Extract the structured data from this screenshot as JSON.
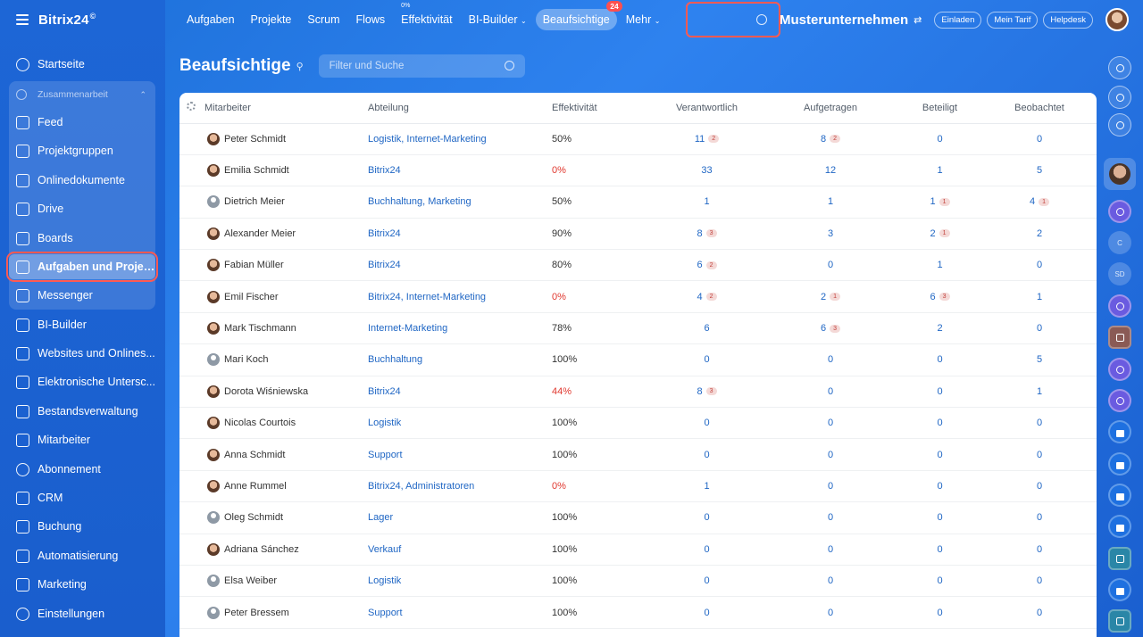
{
  "app": {
    "logo": "Bitrix24",
    "logo_sup": "©"
  },
  "sidebar": {
    "group_label": "Zusammenarbeit",
    "items": [
      {
        "label": "Startseite",
        "icon": "home-icon"
      },
      {
        "label": "Feed",
        "icon": "feed-icon"
      },
      {
        "label": "Projektgruppen",
        "icon": "groups-icon"
      },
      {
        "label": "Onlinedokumente",
        "icon": "document-icon"
      },
      {
        "label": "Drive",
        "icon": "drive-icon"
      },
      {
        "label": "Boards",
        "icon": "boards-icon"
      },
      {
        "label": "Aufgaben und Projek...",
        "icon": "tasks-icon"
      },
      {
        "label": "Messenger",
        "icon": "messenger-icon"
      },
      {
        "label": "BI-Builder",
        "icon": "chart-icon"
      },
      {
        "label": "Websites und Onlines...",
        "icon": "cart-icon"
      },
      {
        "label": "Elektronische Untersc...",
        "icon": "signature-icon"
      },
      {
        "label": "Bestandsverwaltung",
        "icon": "inventory-icon"
      },
      {
        "label": "Mitarbeiter",
        "icon": "employees-icon"
      },
      {
        "label": "Abonnement",
        "icon": "subscription-icon"
      },
      {
        "label": "CRM",
        "icon": "crm-icon"
      },
      {
        "label": "Buchung",
        "icon": "booking-icon"
      },
      {
        "label": "Automatisierung",
        "icon": "automation-icon"
      },
      {
        "label": "Marketing",
        "icon": "marketing-icon"
      },
      {
        "label": "Einstellungen",
        "icon": "settings-icon"
      }
    ]
  },
  "topnav": {
    "tabs": [
      "Aufgaben",
      "Projekte",
      "Scrum",
      "Flows",
      "Effektivität",
      "BI-Builder",
      "Beaufsichtige",
      "Mehr"
    ],
    "eff_mini": "0%",
    "counter": "24",
    "company": "Musterunternehmen",
    "buttons": [
      "Einladen",
      "Mein Tarif",
      "Helpdesk"
    ]
  },
  "page": {
    "title": "Beaufsichtige",
    "filter_placeholder": "Filter und Suche"
  },
  "table": {
    "headers": [
      "Mitarbeiter",
      "Abteilung",
      "Effektivität",
      "Verantwortlich",
      "Aufgetragen",
      "Beteiligt",
      "Beobachtet"
    ],
    "rows": [
      {
        "name": "Peter Schmidt",
        "dept": "Logistik, Internet-Marketing",
        "eff": "50%",
        "red": false,
        "v": "11",
        "vb": "2",
        "a": "8",
        "ab": "2",
        "b": "0",
        "bb": "",
        "o": "0",
        "ob": "",
        "av": "photo"
      },
      {
        "name": "Emilia Schmidt",
        "dept": "Bitrix24",
        "eff": "0%",
        "red": true,
        "v": "33",
        "vb": "",
        "a": "12",
        "ab": "",
        "b": "1",
        "bb": "",
        "o": "5",
        "ob": "",
        "av": "photo"
      },
      {
        "name": "Dietrich Meier",
        "dept": "Buchhaltung, Marketing",
        "eff": "50%",
        "red": false,
        "v": "1",
        "vb": "",
        "a": "1",
        "ab": "",
        "b": "1",
        "bb": "1",
        "o": "4",
        "ob": "1",
        "av": "blank"
      },
      {
        "name": "Alexander Meier",
        "dept": "Bitrix24",
        "eff": "90%",
        "red": false,
        "v": "8",
        "vb": "3",
        "a": "3",
        "ab": "",
        "b": "2",
        "bb": "1",
        "o": "2",
        "ob": "",
        "av": "photo"
      },
      {
        "name": "Fabian Müller",
        "dept": "Bitrix24",
        "eff": "80%",
        "red": false,
        "v": "6",
        "vb": "2",
        "a": "0",
        "ab": "",
        "b": "1",
        "bb": "",
        "o": "0",
        "ob": "",
        "av": "photo"
      },
      {
        "name": "Emil Fischer",
        "dept": "Bitrix24, Internet-Marketing",
        "eff": "0%",
        "red": true,
        "v": "4",
        "vb": "2",
        "a": "2",
        "ab": "1",
        "b": "6",
        "bb": "3",
        "o": "1",
        "ob": "",
        "av": "photo"
      },
      {
        "name": "Mark Tischmann",
        "dept": "Internet-Marketing",
        "eff": "78%",
        "red": false,
        "v": "6",
        "vb": "",
        "a": "6",
        "ab": "3",
        "b": "2",
        "bb": "",
        "o": "0",
        "ob": "",
        "av": "photo"
      },
      {
        "name": "Mari Koch",
        "dept": "Buchhaltung",
        "eff": "100%",
        "red": false,
        "v": "0",
        "vb": "",
        "a": "0",
        "ab": "",
        "b": "0",
        "bb": "",
        "o": "5",
        "ob": "",
        "av": "blank"
      },
      {
        "name": "Dorota Wiśniewska",
        "dept": "Bitrix24",
        "eff": "44%",
        "red": true,
        "v": "8",
        "vb": "3",
        "a": "0",
        "ab": "",
        "b": "0",
        "bb": "",
        "o": "1",
        "ob": "",
        "av": "photo"
      },
      {
        "name": "Nicolas Courtois",
        "dept": "Logistik",
        "eff": "100%",
        "red": false,
        "v": "0",
        "vb": "",
        "a": "0",
        "ab": "",
        "b": "0",
        "bb": "",
        "o": "0",
        "ob": "",
        "av": "photo"
      },
      {
        "name": "Anna Schmidt",
        "dept": "Support",
        "eff": "100%",
        "red": false,
        "v": "0",
        "vb": "",
        "a": "0",
        "ab": "",
        "b": "0",
        "bb": "",
        "o": "0",
        "ob": "",
        "av": "photo"
      },
      {
        "name": "Anne Rummel",
        "dept": "Bitrix24, Administratoren",
        "eff": "0%",
        "red": true,
        "v": "1",
        "vb": "",
        "a": "0",
        "ab": "",
        "b": "0",
        "bb": "",
        "o": "0",
        "ob": "",
        "av": "photo"
      },
      {
        "name": "Oleg Schmidt",
        "dept": "Lager",
        "eff": "100%",
        "red": false,
        "v": "0",
        "vb": "",
        "a": "0",
        "ab": "",
        "b": "0",
        "bb": "",
        "o": "0",
        "ob": "",
        "av": "blank"
      },
      {
        "name": "Adriana Sánchez",
        "dept": "Verkauf",
        "eff": "100%",
        "red": false,
        "v": "0",
        "vb": "",
        "a": "0",
        "ab": "",
        "b": "0",
        "bb": "",
        "o": "0",
        "ob": "",
        "av": "photo"
      },
      {
        "name": "Elsa Weiber",
        "dept": "Logistik",
        "eff": "100%",
        "red": false,
        "v": "0",
        "vb": "",
        "a": "0",
        "ab": "",
        "b": "0",
        "bb": "",
        "o": "0",
        "ob": "",
        "av": "blank"
      },
      {
        "name": "Peter Bressem",
        "dept": "Support",
        "eff": "100%",
        "red": false,
        "v": "0",
        "vb": "",
        "a": "0",
        "ab": "",
        "b": "0",
        "bb": "",
        "o": "0",
        "ob": "",
        "av": "blank"
      }
    ]
  },
  "rightbar": {
    "labels": [
      "C",
      "SD"
    ]
  }
}
